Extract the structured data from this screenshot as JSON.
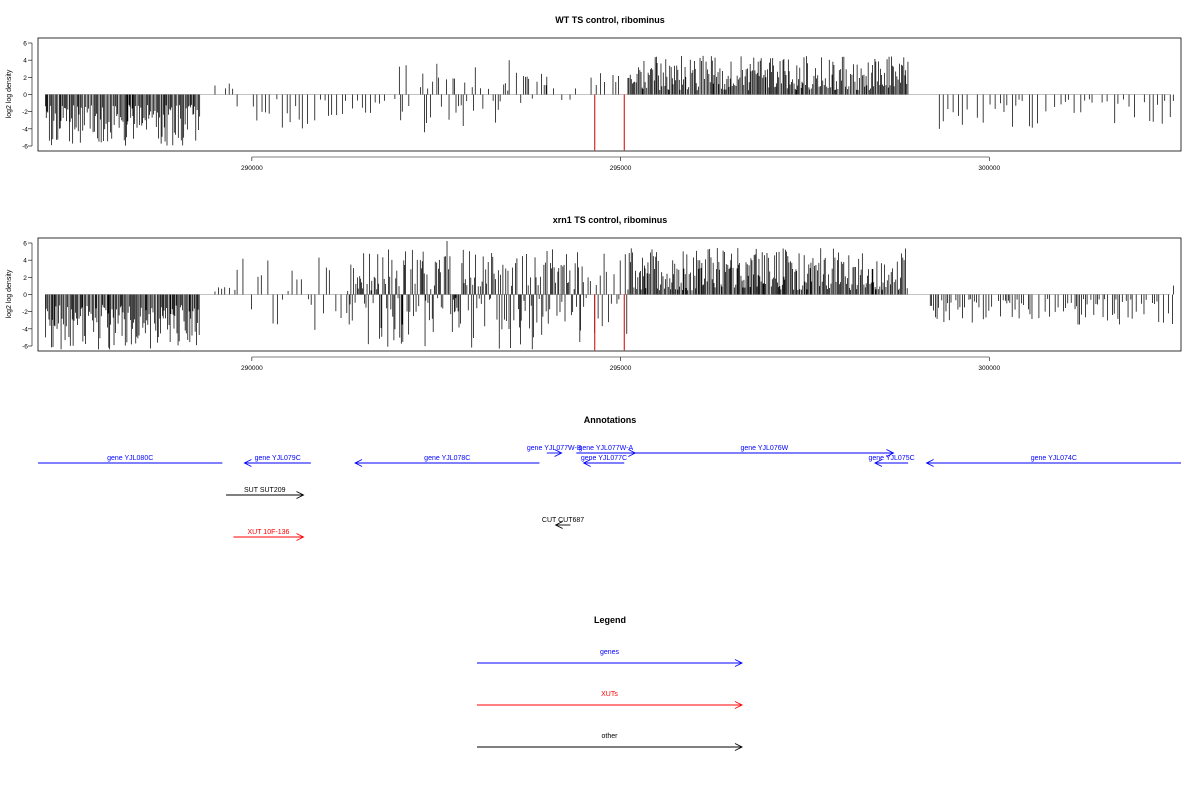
{
  "chart_data": [
    {
      "type": "bar",
      "title": "WT TS control, ribominus",
      "ylabel": "log2 log density",
      "xlim": [
        287100,
        302600
      ],
      "ylim": [
        -6,
        6
      ],
      "yticks": [
        -6,
        -4,
        -2,
        0,
        2,
        4,
        6
      ],
      "xticks": [
        290000,
        295000,
        300000
      ],
      "grid": false,
      "profile_segments": [
        {
          "from": 287200,
          "to": 289300,
          "min": -6,
          "max": -1.2,
          "sign": -1,
          "density": "high"
        },
        {
          "from": 289500,
          "to": 289800,
          "min": 0.5,
          "max": 2.0,
          "sign": 1,
          "density": "low"
        },
        {
          "from": 289800,
          "to": 291300,
          "min": -4.2,
          "max": -0.5,
          "sign": -1,
          "density": "low"
        },
        {
          "from": 291300,
          "to": 292000,
          "min": -3.0,
          "max": -0.5,
          "sign": -1,
          "density": "low"
        },
        {
          "from": 292000,
          "to": 294000,
          "min": -4.0,
          "max": 3.5,
          "sign": 0,
          "density": "medium"
        },
        {
          "from": 294000,
          "to": 294500,
          "min": -2.0,
          "max": 1.0,
          "sign": 0,
          "density": "low"
        },
        {
          "from": 294600,
          "to": 295000,
          "min": 0.5,
          "max": 3.0,
          "sign": 1,
          "density": "low"
        },
        {
          "from": 295100,
          "to": 298900,
          "min": 0.5,
          "max": 4.5,
          "sign": 1,
          "density": "high"
        },
        {
          "from": 299200,
          "to": 302500,
          "min": -4.0,
          "max": -0.5,
          "sign": -1,
          "density": "low"
        }
      ],
      "highlight_bars": [
        {
          "x": 294650,
          "value": -6.5,
          "color": "#cc0000"
        },
        {
          "x": 295050,
          "value": -6.5,
          "color": "#cc0000"
        }
      ]
    },
    {
      "type": "bar",
      "title": "xrn1 TS control, ribominus",
      "ylabel": "log2 log density",
      "xlim": [
        287100,
        302600
      ],
      "ylim": [
        -6,
        6
      ],
      "yticks": [
        -6,
        -4,
        -2,
        0,
        2,
        4,
        6
      ],
      "xticks": [
        290000,
        295000,
        300000
      ],
      "grid": false,
      "profile_segments": [
        {
          "from": 287200,
          "to": 289300,
          "min": -6.5,
          "max": -1.2,
          "sign": -1,
          "density": "high"
        },
        {
          "from": 289500,
          "to": 289800,
          "min": 0.3,
          "max": 1.0,
          "sign": 1,
          "density": "low"
        },
        {
          "from": 289800,
          "to": 291300,
          "min": -4.0,
          "max": 3.0,
          "sign": 0,
          "density": "low"
        },
        {
          "from": 291300,
          "to": 294500,
          "min": -5.0,
          "max": 6.0,
          "sign": 0,
          "density": "high"
        },
        {
          "from": 294500,
          "to": 295100,
          "min": -2.5,
          "max": 4.5,
          "sign": 0,
          "density": "medium"
        },
        {
          "from": 295100,
          "to": 298900,
          "min": 0.5,
          "max": 5.5,
          "sign": 1,
          "density": "high"
        },
        {
          "from": 299200,
          "to": 302500,
          "min": -3.5,
          "max": -0.5,
          "sign": -1,
          "density": "medium"
        },
        {
          "from": 302500,
          "to": 302600,
          "min": 0.5,
          "max": 1.5,
          "sign": 1,
          "density": "low"
        }
      ],
      "highlight_bars": [
        {
          "x": 294650,
          "value": -6.5,
          "color": "#cc0000"
        },
        {
          "x": 295050,
          "value": -6.5,
          "color": "#cc0000"
        }
      ]
    }
  ],
  "annotations": {
    "title": "Annotations",
    "features": [
      {
        "label": "gene YJL080C",
        "start": 287100,
        "end": 289600,
        "strand": "-",
        "kind": "genes",
        "row": 1
      },
      {
        "label": "gene YJL079C",
        "start": 289900,
        "end": 290800,
        "strand": "-",
        "kind": "genes",
        "row": 1
      },
      {
        "label": "gene YJL078C",
        "start": 291400,
        "end": 293900,
        "strand": "-",
        "kind": "genes",
        "row": 1
      },
      {
        "label": "gene YJL077W-B",
        "start": 294000,
        "end": 294200,
        "strand": "+",
        "kind": "genes",
        "row": 0
      },
      {
        "label": "gene YJL077W-A",
        "start": 294400,
        "end": 295200,
        "strand": "+",
        "kind": "genes",
        "row": 0
      },
      {
        "label": "gene YJL077C",
        "start": 294500,
        "end": 295050,
        "strand": "-",
        "kind": "genes",
        "row": 1
      },
      {
        "label": "gene YJL076W",
        "start": 295200,
        "end": 298700,
        "strand": "+",
        "kind": "genes",
        "row": 0
      },
      {
        "label": "gene YJL075C",
        "start": 298450,
        "end": 298900,
        "strand": "-",
        "kind": "genes",
        "row": 1
      },
      {
        "label": "gene YJL074C",
        "start": 299150,
        "end": 302600,
        "strand": "-",
        "kind": "genes",
        "row": 1
      },
      {
        "label": "SUT SUT209",
        "start": 289650,
        "end": 290700,
        "strand": "+",
        "kind": "other",
        "row": 2
      },
      {
        "label": "CUT CUT687",
        "start": 294120,
        "end": 294320,
        "strand": "-",
        "kind": "other",
        "row": 3
      },
      {
        "label": "XUT 10F-136",
        "start": 289750,
        "end": 290700,
        "strand": "+",
        "kind": "XUTs",
        "row": 4
      }
    ]
  },
  "legend": {
    "title": "Legend",
    "items": [
      {
        "label": "genes",
        "color": "#0000ff"
      },
      {
        "label": "XUTs",
        "color": "#ff0000"
      },
      {
        "label": "other",
        "color": "#000000"
      }
    ]
  }
}
